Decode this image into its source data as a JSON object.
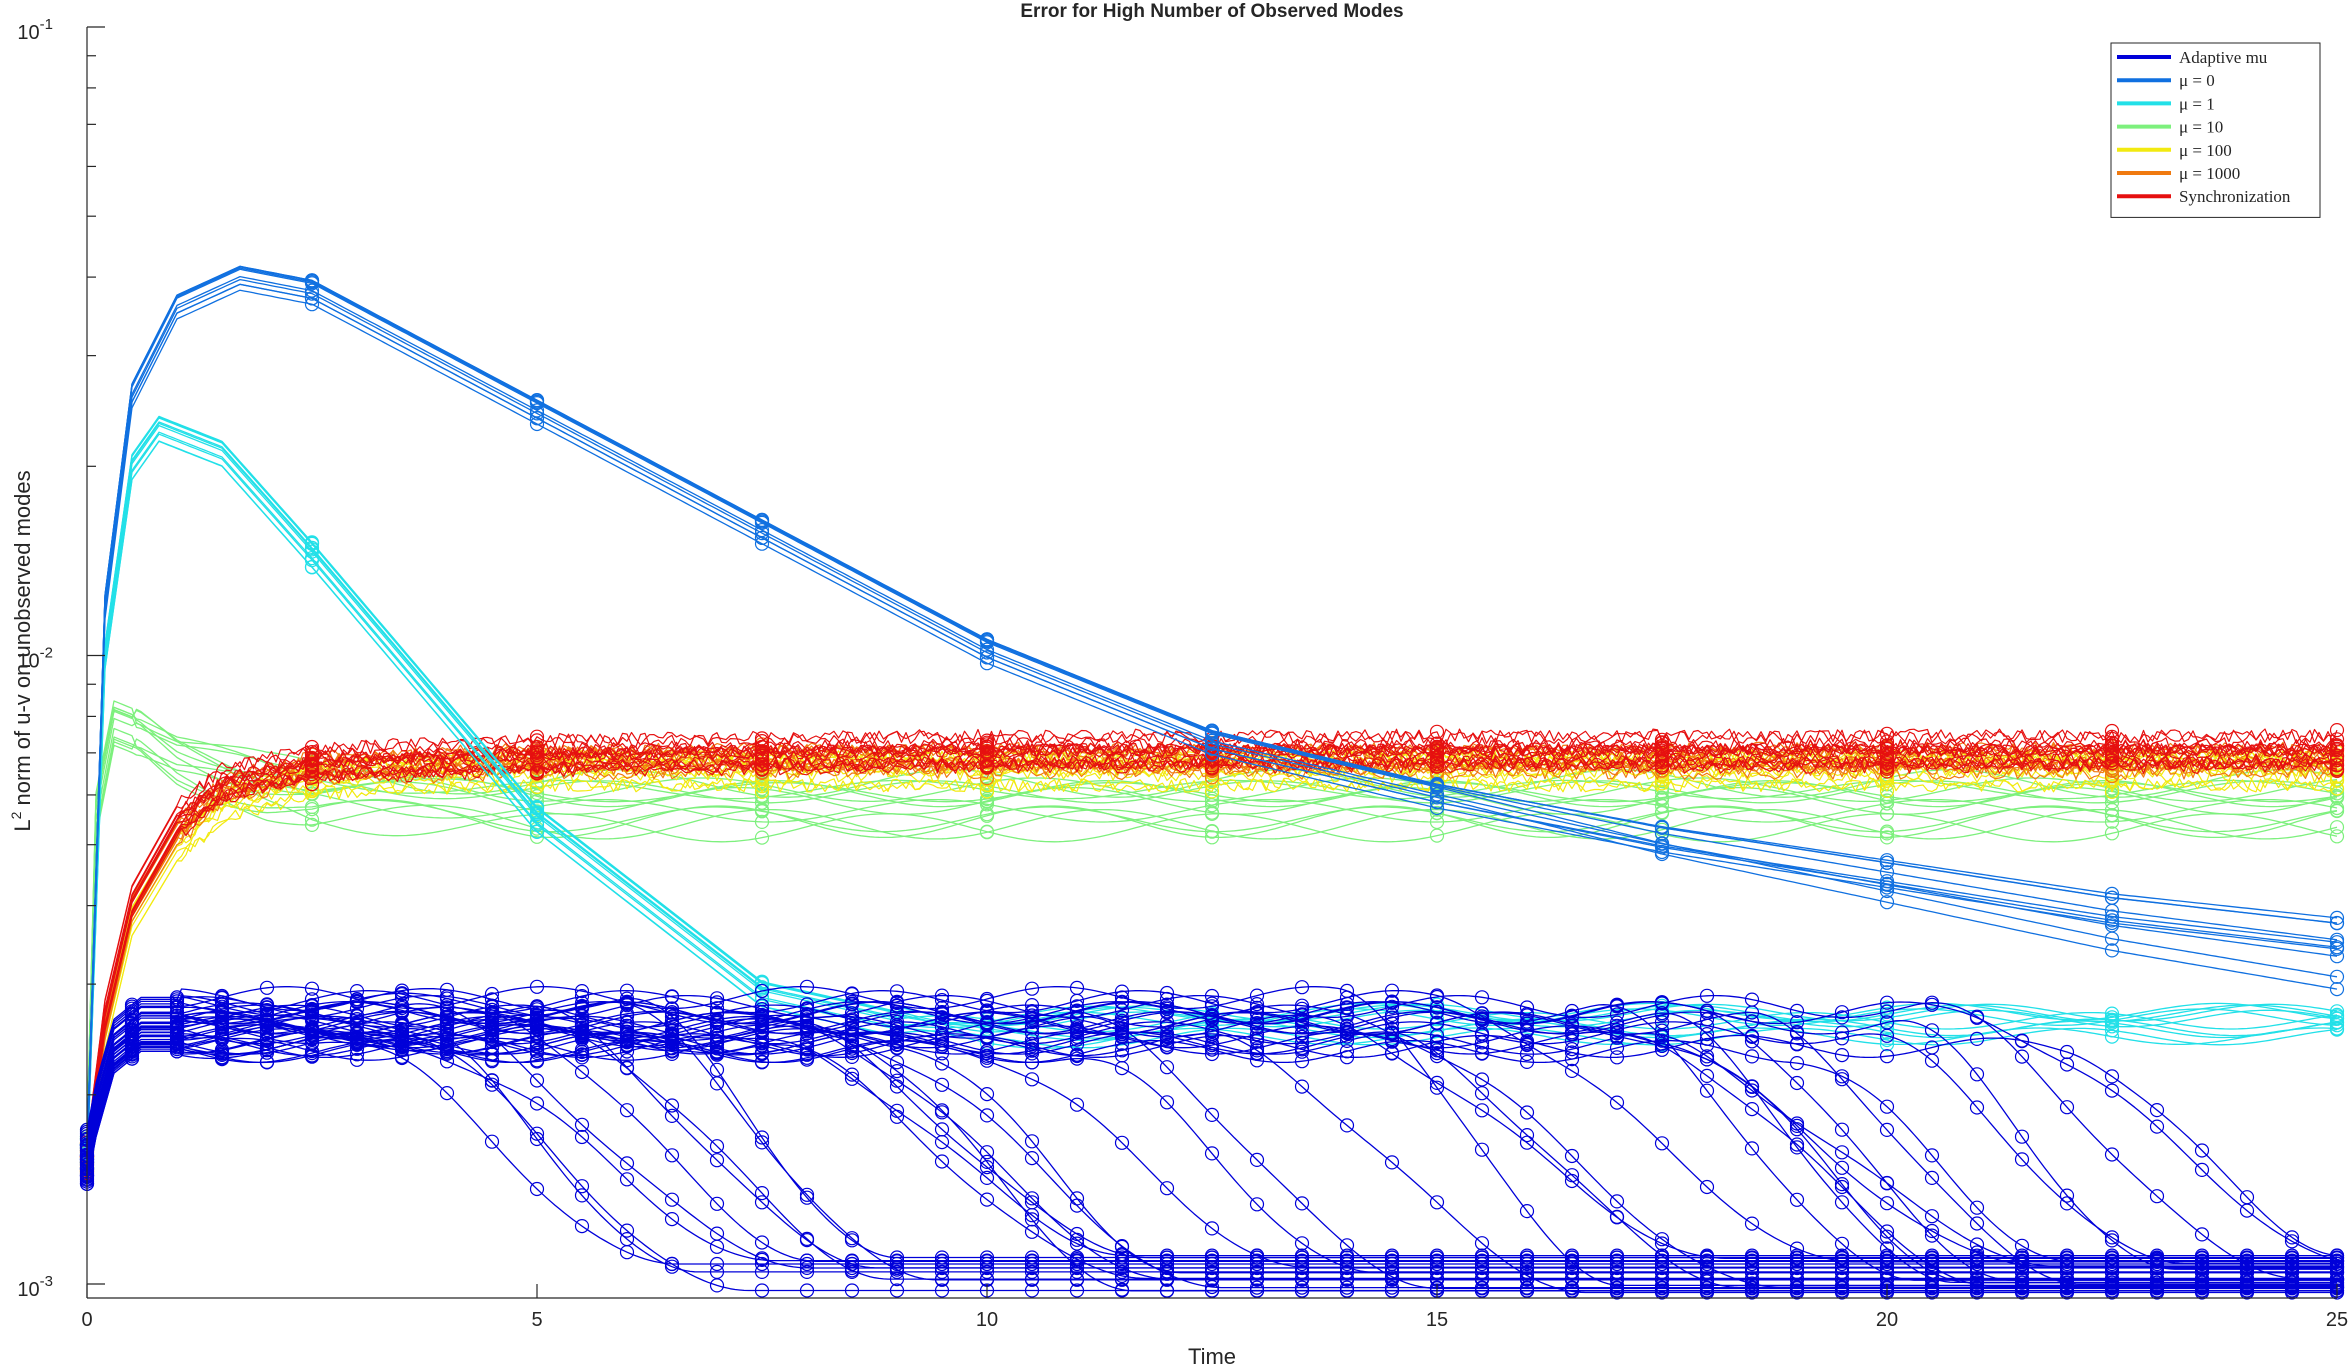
{
  "chart_data": {
    "type": "line",
    "title": "Error for High Number of Observed Modes",
    "xlabel": "Time",
    "ylabel_prefix": "L",
    "ylabel_sup": "2",
    "ylabel_suffix": " norm of u-v on unobserved modes",
    "xlim": [
      0,
      25
    ],
    "ylim": [
      0.00095,
      0.1
    ],
    "yscale": "log",
    "xticks": [
      0,
      5,
      10,
      15,
      20,
      25
    ],
    "xtick_labels": [
      "0",
      "5",
      "10",
      "15",
      "20",
      "25"
    ],
    "yticks": [
      0.001,
      0.01,
      0.1
    ],
    "ytick_labels": [
      {
        "base": "10",
        "exp": "-3"
      },
      {
        "base": "10",
        "exp": "-2"
      },
      {
        "base": "10",
        "exp": "-1"
      }
    ],
    "grid": false,
    "legend_position": "top-right",
    "markers": "circle every 2.5 time units",
    "series": [
      {
        "name": "Adaptive mu",
        "color": "#0000d9",
        "x": [
          0,
          0.1,
          0.3,
          0.6,
          1,
          2,
          3,
          5,
          10,
          15,
          20,
          25
        ],
        "plateau_values": [
          0.0016,
          0.0019,
          0.0024,
          0.0026,
          0.0026,
          0.0026,
          0.0026,
          0.0026,
          0.0026,
          0.0026,
          0.0026,
          0.0025
        ],
        "final_values": [
          0.00105,
          0.0011
        ]
      },
      {
        "name": "μ = 0",
        "color": "#1070e0",
        "x": [
          0,
          0.2,
          0.5,
          1,
          1.7,
          2.5,
          5,
          7.5,
          10,
          12.5,
          15,
          17.5,
          20,
          22.5,
          25
        ],
        "values": [
          0.0016,
          0.012,
          0.026,
          0.036,
          0.04,
          0.038,
          0.0245,
          0.0158,
          0.0102,
          0.0073,
          0.006,
          0.005,
          0.0043,
          0.0037,
          0.0033
        ]
      },
      {
        "name": "μ = 1",
        "color": "#22e0e8",
        "x": [
          0,
          0.2,
          0.5,
          0.8,
          1.5,
          2.5,
          5,
          7.5,
          9,
          10,
          12.5,
          15,
          17.5,
          20,
          22.5,
          25
        ],
        "values": [
          0.0016,
          0.01,
          0.02,
          0.023,
          0.021,
          0.0145,
          0.0055,
          0.0029,
          0.0026,
          0.00255,
          0.0026,
          0.0026,
          0.0026,
          0.0026,
          0.0026,
          0.0026
        ]
      },
      {
        "name": "μ = 10",
        "color": "#7df07d",
        "x": [
          0,
          0.1,
          0.3,
          0.6,
          1,
          2,
          2.5,
          5,
          10,
          15,
          20,
          25
        ],
        "values": [
          0.0016,
          0.0055,
          0.0077,
          0.0074,
          0.0068,
          0.0061,
          0.0059,
          0.0057,
          0.0057,
          0.0057,
          0.0057,
          0.0057
        ]
      },
      {
        "name": "μ = 100",
        "color": "#f2ea10",
        "x": [
          0,
          0.2,
          0.5,
          1,
          1.5,
          2.5,
          5,
          10,
          15,
          20,
          25
        ],
        "values": [
          0.0016,
          0.0025,
          0.0038,
          0.005,
          0.0058,
          0.0064,
          0.0066,
          0.0066,
          0.0066,
          0.0066,
          0.0066
        ]
      },
      {
        "name": "μ = 1000",
        "color": "#f07a10",
        "x": [
          0,
          0.2,
          0.5,
          1,
          1.5,
          2.5,
          5,
          10,
          15,
          20,
          25
        ],
        "values": [
          0.0016,
          0.0026,
          0.004,
          0.0053,
          0.0062,
          0.0067,
          0.0069,
          0.0069,
          0.0069,
          0.0069,
          0.0069
        ]
      },
      {
        "name": "Synchronization",
        "color": "#e61010",
        "x": [
          0,
          0.2,
          0.5,
          1,
          1.5,
          2.5,
          5,
          10,
          15,
          20,
          25
        ],
        "values": [
          0.0016,
          0.0027,
          0.0041,
          0.0055,
          0.0063,
          0.0068,
          0.007,
          0.0071,
          0.0071,
          0.0071,
          0.0071
        ]
      }
    ],
    "legend": [
      {
        "label": "Adaptive mu",
        "color": "#0000d9"
      },
      {
        "label": "μ = 0",
        "color": "#1070e0"
      },
      {
        "label": "μ = 1",
        "color": "#22e0e8"
      },
      {
        "label": "μ = 10",
        "color": "#7df07d"
      },
      {
        "label": "μ = 100",
        "color": "#f2ea10"
      },
      {
        "label": "μ = 1000",
        "color": "#f07a10"
      },
      {
        "label": "Synchronization",
        "color": "#e61010"
      }
    ]
  }
}
